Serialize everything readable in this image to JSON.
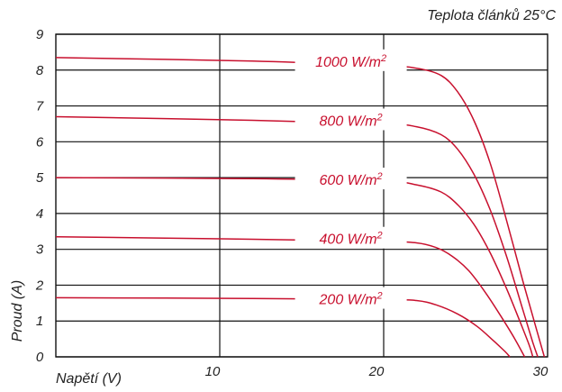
{
  "chart_data": {
    "type": "line",
    "annotation": "Teplota článků 25°C",
    "xlabel": "Napětí (V)",
    "ylabel": "Proud (A)",
    "xlim": [
      0,
      30
    ],
    "ylim": [
      0,
      9
    ],
    "xticks": [
      "0",
      "10",
      "20",
      "30"
    ],
    "yticks": [
      "0",
      "1",
      "2",
      "3",
      "4",
      "5",
      "6",
      "7",
      "8",
      "9"
    ],
    "grid": true,
    "line_color": "#c8102e",
    "series": [
      {
        "name": "1000 W/m2",
        "label_base": "1000 W/m",
        "label_sup": "2",
        "label_at": [
          18,
          8.25
        ],
        "points": [
          [
            0,
            8.35
          ],
          [
            12,
            8.25
          ],
          [
            20,
            8.12
          ],
          [
            22,
            8.05
          ],
          [
            23.5,
            7.85
          ],
          [
            24.5,
            7.4
          ],
          [
            25.5,
            6.6
          ],
          [
            26.5,
            5.4
          ],
          [
            27.5,
            3.8
          ],
          [
            28.5,
            2.1
          ],
          [
            29.3,
            0.8
          ],
          [
            29.8,
            0
          ]
        ]
      },
      {
        "name": "800 W/m2",
        "label_base": "800 W/m",
        "label_sup": "2",
        "label_at": [
          18,
          6.6
        ],
        "points": [
          [
            0,
            6.7
          ],
          [
            12,
            6.6
          ],
          [
            20,
            6.5
          ],
          [
            22,
            6.42
          ],
          [
            23.5,
            6.2
          ],
          [
            24.5,
            5.8
          ],
          [
            25.5,
            5.1
          ],
          [
            26.5,
            4.1
          ],
          [
            27.5,
            2.8
          ],
          [
            28.5,
            1.3
          ],
          [
            29.1,
            0.4
          ],
          [
            29.4,
            0
          ]
        ]
      },
      {
        "name": "600 W/m2",
        "label_base": "600 W/m",
        "label_sup": "2",
        "label_at": [
          18,
          4.95
        ],
        "points": [
          [
            0,
            5.0
          ],
          [
            12,
            4.97
          ],
          [
            20,
            4.9
          ],
          [
            22,
            4.8
          ],
          [
            23.5,
            4.6
          ],
          [
            24.5,
            4.25
          ],
          [
            25.5,
            3.7
          ],
          [
            26.5,
            2.9
          ],
          [
            27.5,
            1.9
          ],
          [
            28.3,
            1.0
          ],
          [
            28.9,
            0.3
          ],
          [
            29.1,
            0
          ]
        ]
      },
      {
        "name": "400 W/m2",
        "label_base": "400 W/m",
        "label_sup": "2",
        "label_at": [
          18,
          3.3
        ],
        "points": [
          [
            0,
            3.35
          ],
          [
            12,
            3.28
          ],
          [
            20,
            3.22
          ],
          [
            22,
            3.18
          ],
          [
            23.2,
            3.05
          ],
          [
            24.2,
            2.8
          ],
          [
            25.2,
            2.4
          ],
          [
            26.2,
            1.8
          ],
          [
            27.2,
            1.1
          ],
          [
            28.0,
            0.5
          ],
          [
            28.6,
            0
          ]
        ]
      },
      {
        "name": "200 W/m2",
        "label_base": "200 W/m",
        "label_sup": "2",
        "label_at": [
          18,
          1.62
        ],
        "points": [
          [
            0,
            1.65
          ],
          [
            12,
            1.63
          ],
          [
            20,
            1.6
          ],
          [
            22,
            1.57
          ],
          [
            23.2,
            1.45
          ],
          [
            24.5,
            1.2
          ],
          [
            25.7,
            0.85
          ],
          [
            26.7,
            0.45
          ],
          [
            27.4,
            0.15
          ],
          [
            27.7,
            0
          ]
        ]
      }
    ]
  }
}
